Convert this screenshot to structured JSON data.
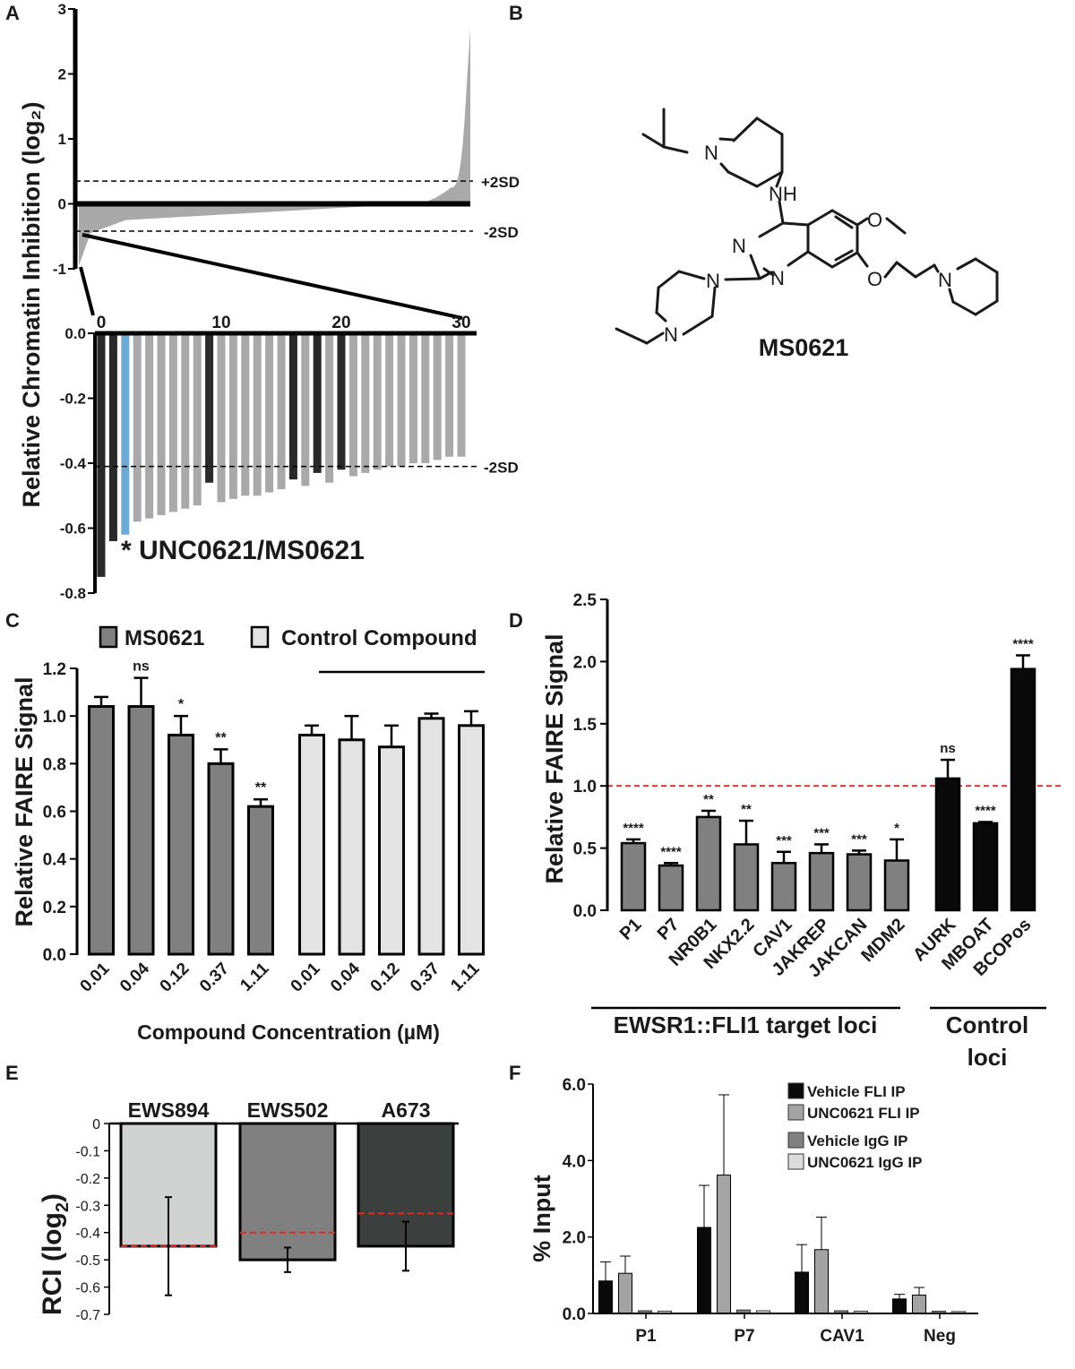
{
  "panels": {
    "A": "A",
    "B": "B",
    "C": "C",
    "D": "D",
    "E": "E",
    "F": "F"
  },
  "chart_data": [
    {
      "panel": "A",
      "type": "bar",
      "ylabel": "Relative Chromatin Inhibition (log₂)",
      "ylim": [
        -1,
        3
      ],
      "yticks": [
        "3",
        "2",
        "1",
        "0",
        "-1"
      ],
      "sd_labels": {
        "upper": "+2SD",
        "lower": "-2SD"
      },
      "sd_values": {
        "upper": 0.35,
        "lower": -0.42
      },
      "inset": {
        "xticks": [
          "0",
          "10",
          "20",
          "30"
        ],
        "yticks": [
          "0.0",
          "-0.2",
          "-0.4",
          "-0.6",
          "-0.8"
        ],
        "ylim": [
          -0.8,
          0
        ],
        "sd_label": "-2SD",
        "sd_value": -0.41,
        "annotation": "* UNC0621/MS0621",
        "highlight_index": 2,
        "dark_indices": [
          0,
          1,
          9,
          16,
          18,
          20
        ],
        "values": [
          -0.75,
          -0.64,
          -0.62,
          -0.58,
          -0.57,
          -0.56,
          -0.55,
          -0.54,
          -0.53,
          -0.46,
          -0.52,
          -0.51,
          -0.5,
          -0.5,
          -0.49,
          -0.48,
          -0.45,
          -0.47,
          -0.43,
          -0.46,
          -0.42,
          -0.44,
          -0.43,
          -0.42,
          -0.41,
          -0.41,
          -0.4,
          -0.4,
          -0.39,
          -0.38,
          -0.38
        ]
      }
    },
    {
      "panel": "B",
      "type": "structure",
      "compound_name": "MS0621",
      "atoms": {
        "n": "N",
        "nh": "NH",
        "o": "O"
      }
    },
    {
      "panel": "C",
      "type": "bar",
      "ylabel": "Relative FAIRE Signal",
      "xlabel": "Compound Concentration (µM)",
      "ylim": [
        0,
        1.2
      ],
      "yticks": [
        "0.0",
        "0.2",
        "0.4",
        "0.6",
        "0.8",
        "1.0",
        "1.2"
      ],
      "categories": [
        "0.01",
        "0.04",
        "0.12",
        "0.37",
        "1.11"
      ],
      "series": [
        {
          "name": "MS0621",
          "color": "#808080",
          "values": [
            1.04,
            1.04,
            0.92,
            0.8,
            0.62
          ],
          "errors": [
            0.04,
            0.12,
            0.08,
            0.06,
            0.03
          ],
          "annotations": [
            "",
            "ns",
            "*",
            "**",
            "**"
          ]
        },
        {
          "name": "Control Compound",
          "color": "#e3e3e3",
          "values": [
            0.92,
            0.9,
            0.87,
            0.99,
            0.96
          ],
          "errors": [
            0.04,
            0.1,
            0.09,
            0.02,
            0.06
          ],
          "annotations": [
            "",
            "",
            "",
            "",
            ""
          ]
        }
      ]
    },
    {
      "panel": "D",
      "type": "bar",
      "ylabel": "Relative FAIRE Signal",
      "ylim": [
        0,
        2.5
      ],
      "yticks": [
        "0.0",
        "0.5",
        "1.0",
        "1.5",
        "2.0",
        "2.5"
      ],
      "reference_line": 1.0,
      "groups": [
        {
          "label": "EWSR1::FLI1 target loci",
          "color": "#808080",
          "categories": [
            "P1",
            "P7",
            "NR0B1",
            "NKX2.2",
            "CAV1",
            "JAKREP",
            "JAKCAN",
            "MDM2"
          ],
          "values": [
            0.54,
            0.36,
            0.75,
            0.53,
            0.38,
            0.46,
            0.45,
            0.4
          ],
          "errors": [
            0.03,
            0.02,
            0.05,
            0.19,
            0.09,
            0.07,
            0.03,
            0.17
          ],
          "annotations": [
            "****",
            "****",
            "**",
            "**",
            "***",
            "***",
            "***",
            "*"
          ]
        },
        {
          "label_lines": [
            "Control",
            "loci"
          ],
          "color": "#0a0a0a",
          "categories": [
            "AURK",
            "MBOAT",
            "BCOPos"
          ],
          "values": [
            1.06,
            0.7,
            1.94
          ],
          "errors": [
            0.15,
            0.01,
            0.11
          ],
          "annotations": [
            "ns",
            "****",
            "****"
          ]
        }
      ]
    },
    {
      "panel": "E",
      "type": "bar",
      "ylabel": "RCI (log",
      "ylabel_sub": "2",
      "ylabel_close": ")",
      "ylim": [
        -0.7,
        0
      ],
      "yticks": [
        "0",
        "-0.1",
        "-0.2",
        "-0.3",
        "-0.4",
        "-0.5",
        "-0.6",
        "-0.7"
      ],
      "categories": [
        "EWS894",
        "EWS502",
        "A673"
      ],
      "colors": [
        "#d0d2d1",
        "#7f807f",
        "#3b3f3e"
      ],
      "values": [
        -0.45,
        -0.5,
        -0.45
      ],
      "errors": [
        0.18,
        0.045,
        0.09
      ],
      "reference_values": [
        -0.45,
        -0.4,
        -0.33
      ]
    },
    {
      "panel": "F",
      "type": "bar",
      "ylabel": "% Input",
      "ylim": [
        0,
        6
      ],
      "yticks": [
        "0.0",
        "2.0",
        "4.0",
        "6.0"
      ],
      "categories": [
        "P1",
        "P7",
        "CAV1",
        "Neg"
      ],
      "series": [
        {
          "name": "Vehicle FLI IP",
          "color": "#0a0a0a",
          "values": [
            0.85,
            2.25,
            1.08,
            0.38
          ],
          "errors": [
            0.5,
            1.1,
            0.72,
            0.12
          ]
        },
        {
          "name": "UNC0621 FLI IP",
          "color": "#a3a3a3",
          "values": [
            1.05,
            3.62,
            1.67,
            0.48
          ],
          "errors": [
            0.45,
            2.1,
            0.85,
            0.2
          ]
        },
        {
          "name": "Vehicle IgG IP",
          "color": "#808080",
          "values": [
            0.07,
            0.09,
            0.07,
            0.06
          ],
          "errors": [
            0,
            0,
            0,
            0
          ]
        },
        {
          "name": "UNC0621 IgG IP",
          "color": "#dcdcdc",
          "values": [
            0.06,
            0.07,
            0.06,
            0.05
          ],
          "errors": [
            0,
            0,
            0,
            0
          ]
        }
      ]
    }
  ]
}
